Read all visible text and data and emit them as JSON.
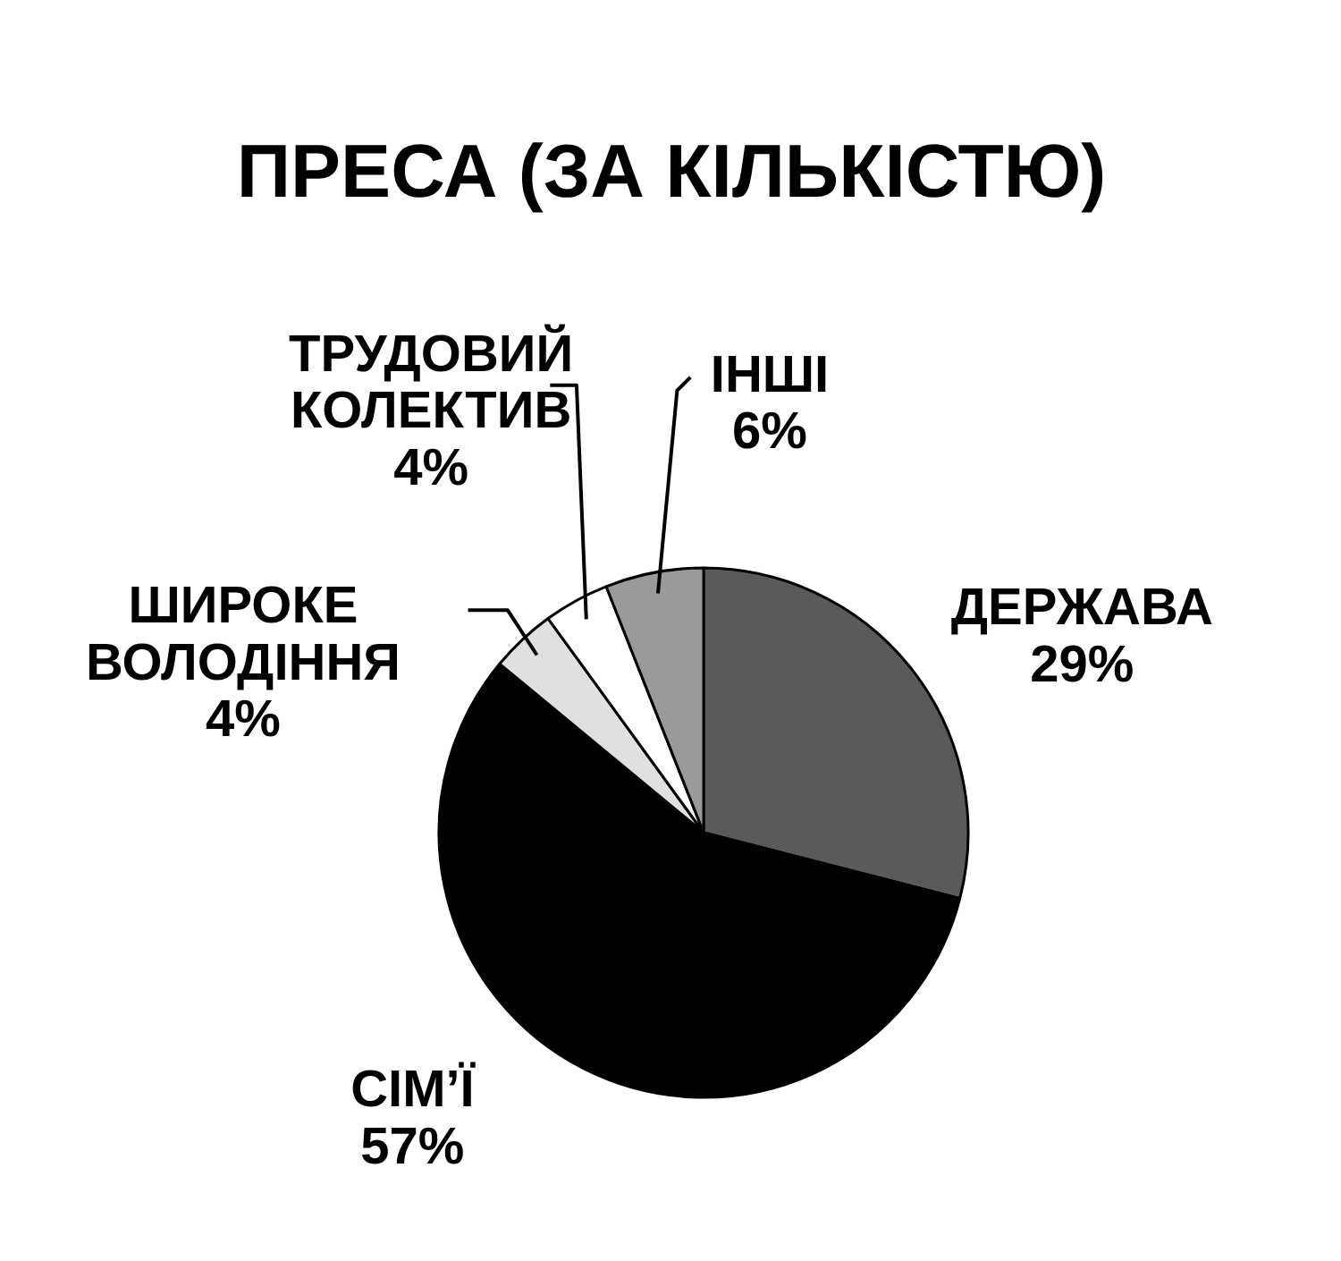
{
  "chart_data": {
    "type": "pie",
    "title": "ПРЕСА (ЗА КІЛЬКІСТЮ)",
    "categories": [
      "ДЕРЖАВА",
      "СІМ’Ї",
      "ШИРОКЕ ВОЛОДІННЯ",
      "ТРУДОВИЙ КОЛЕКТИВ",
      "ІНШІ"
    ],
    "values": [
      29,
      57,
      4,
      4,
      6
    ],
    "colors": [
      "#5a5a5a",
      "#000000",
      "#e0e0e0",
      "#ffffff",
      "#9a9a9a"
    ],
    "value_labels": [
      "29%",
      "57%",
      "4%",
      "4%",
      "6%"
    ]
  }
}
